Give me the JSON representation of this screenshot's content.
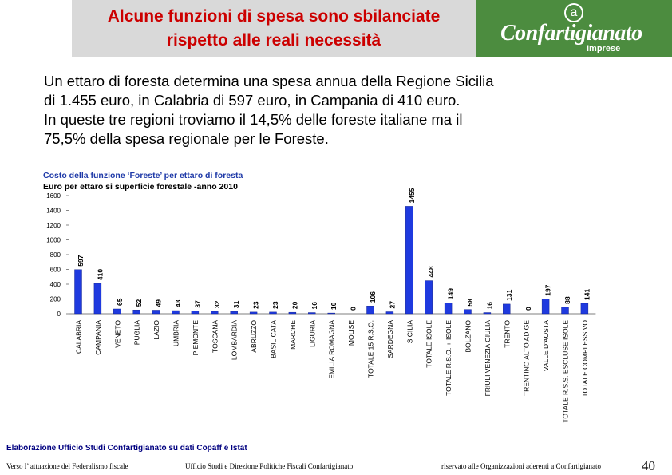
{
  "header": {
    "title_line1": "Alcune funzioni di spesa sono sbilanciate",
    "title_line2": "rispetto alle reali necessità",
    "logo_text": "Confartigianato",
    "logo_sub": "Imprese",
    "logo_symbol": "a"
  },
  "intro": {
    "line1": "Un ettaro di foresta determina una spesa annua della Regione Sicilia",
    "line2": "di 1.455 euro, in Calabria di 597 euro, in Campania di 410 euro.",
    "line3": "In queste tre regioni troviamo il 14,5% delle foreste italiane ma il",
    "line4": "75,5% della spesa regionale per le Foreste."
  },
  "chart_data": {
    "type": "bar",
    "title": "Costo della funzione ‘Foreste’ per ettaro di foresta",
    "subtitle": "Euro per ettaro si superficie forestale -anno 2010",
    "ylim": [
      0,
      1600
    ],
    "yticks": [
      0,
      200,
      400,
      600,
      800,
      1000,
      1200,
      1400,
      1600
    ],
    "bar_color": "#1f3adf",
    "categories": [
      "CALABRIA",
      "CAMPANIA",
      "VENETO",
      "PUGLIA",
      "LAZIO",
      "UMBRIA",
      "PIEMONTE",
      "TOSCANA",
      "LOMBARDIA",
      "ABRUZZO",
      "BASILICATA",
      "MARCHE",
      "LIGURIA",
      "EMILIA ROMAGNA",
      "MOLISE",
      "TOTALE 15 R.S.O.",
      "SARDEGNA",
      "SICILIA",
      "TOTALE ISOLE",
      "TOTALE R.S.O. + ISOLE",
      "BOLZANO",
      "FRIULI VENEZIA GIULIA",
      "TRENTO",
      "TRENTINO ALTO ADIGE",
      "VALLE D'AOSTA",
      "TOTALE R.S.S. ESCLUSE ISOLE",
      "TOTALE COMPLESSIVO"
    ],
    "values": [
      597,
      410,
      65,
      52,
      49,
      43,
      37,
      32,
      31,
      23,
      23,
      20,
      16,
      10,
      0,
      106,
      27,
      1455,
      448,
      149,
      58,
      16,
      131,
      0,
      197,
      88,
      141
    ]
  },
  "source": "Elaborazione Ufficio Studi Confartigianato su dati Copaff e Istat",
  "footer": {
    "left": "Verso l’ attuazione del Federalismo fiscale",
    "center": "Ufficio Studi e Direzione Politiche Fiscali Confartigianato",
    "right": "riservato alle Organizzazioni aderenti a Confartigianato",
    "page": "40"
  },
  "colors": {
    "title_red": "#cc0000",
    "title_band": "#d9d9d9",
    "logo_green": "#4c8c3f",
    "chart_subtitle_blue": "#1f3aa8"
  }
}
